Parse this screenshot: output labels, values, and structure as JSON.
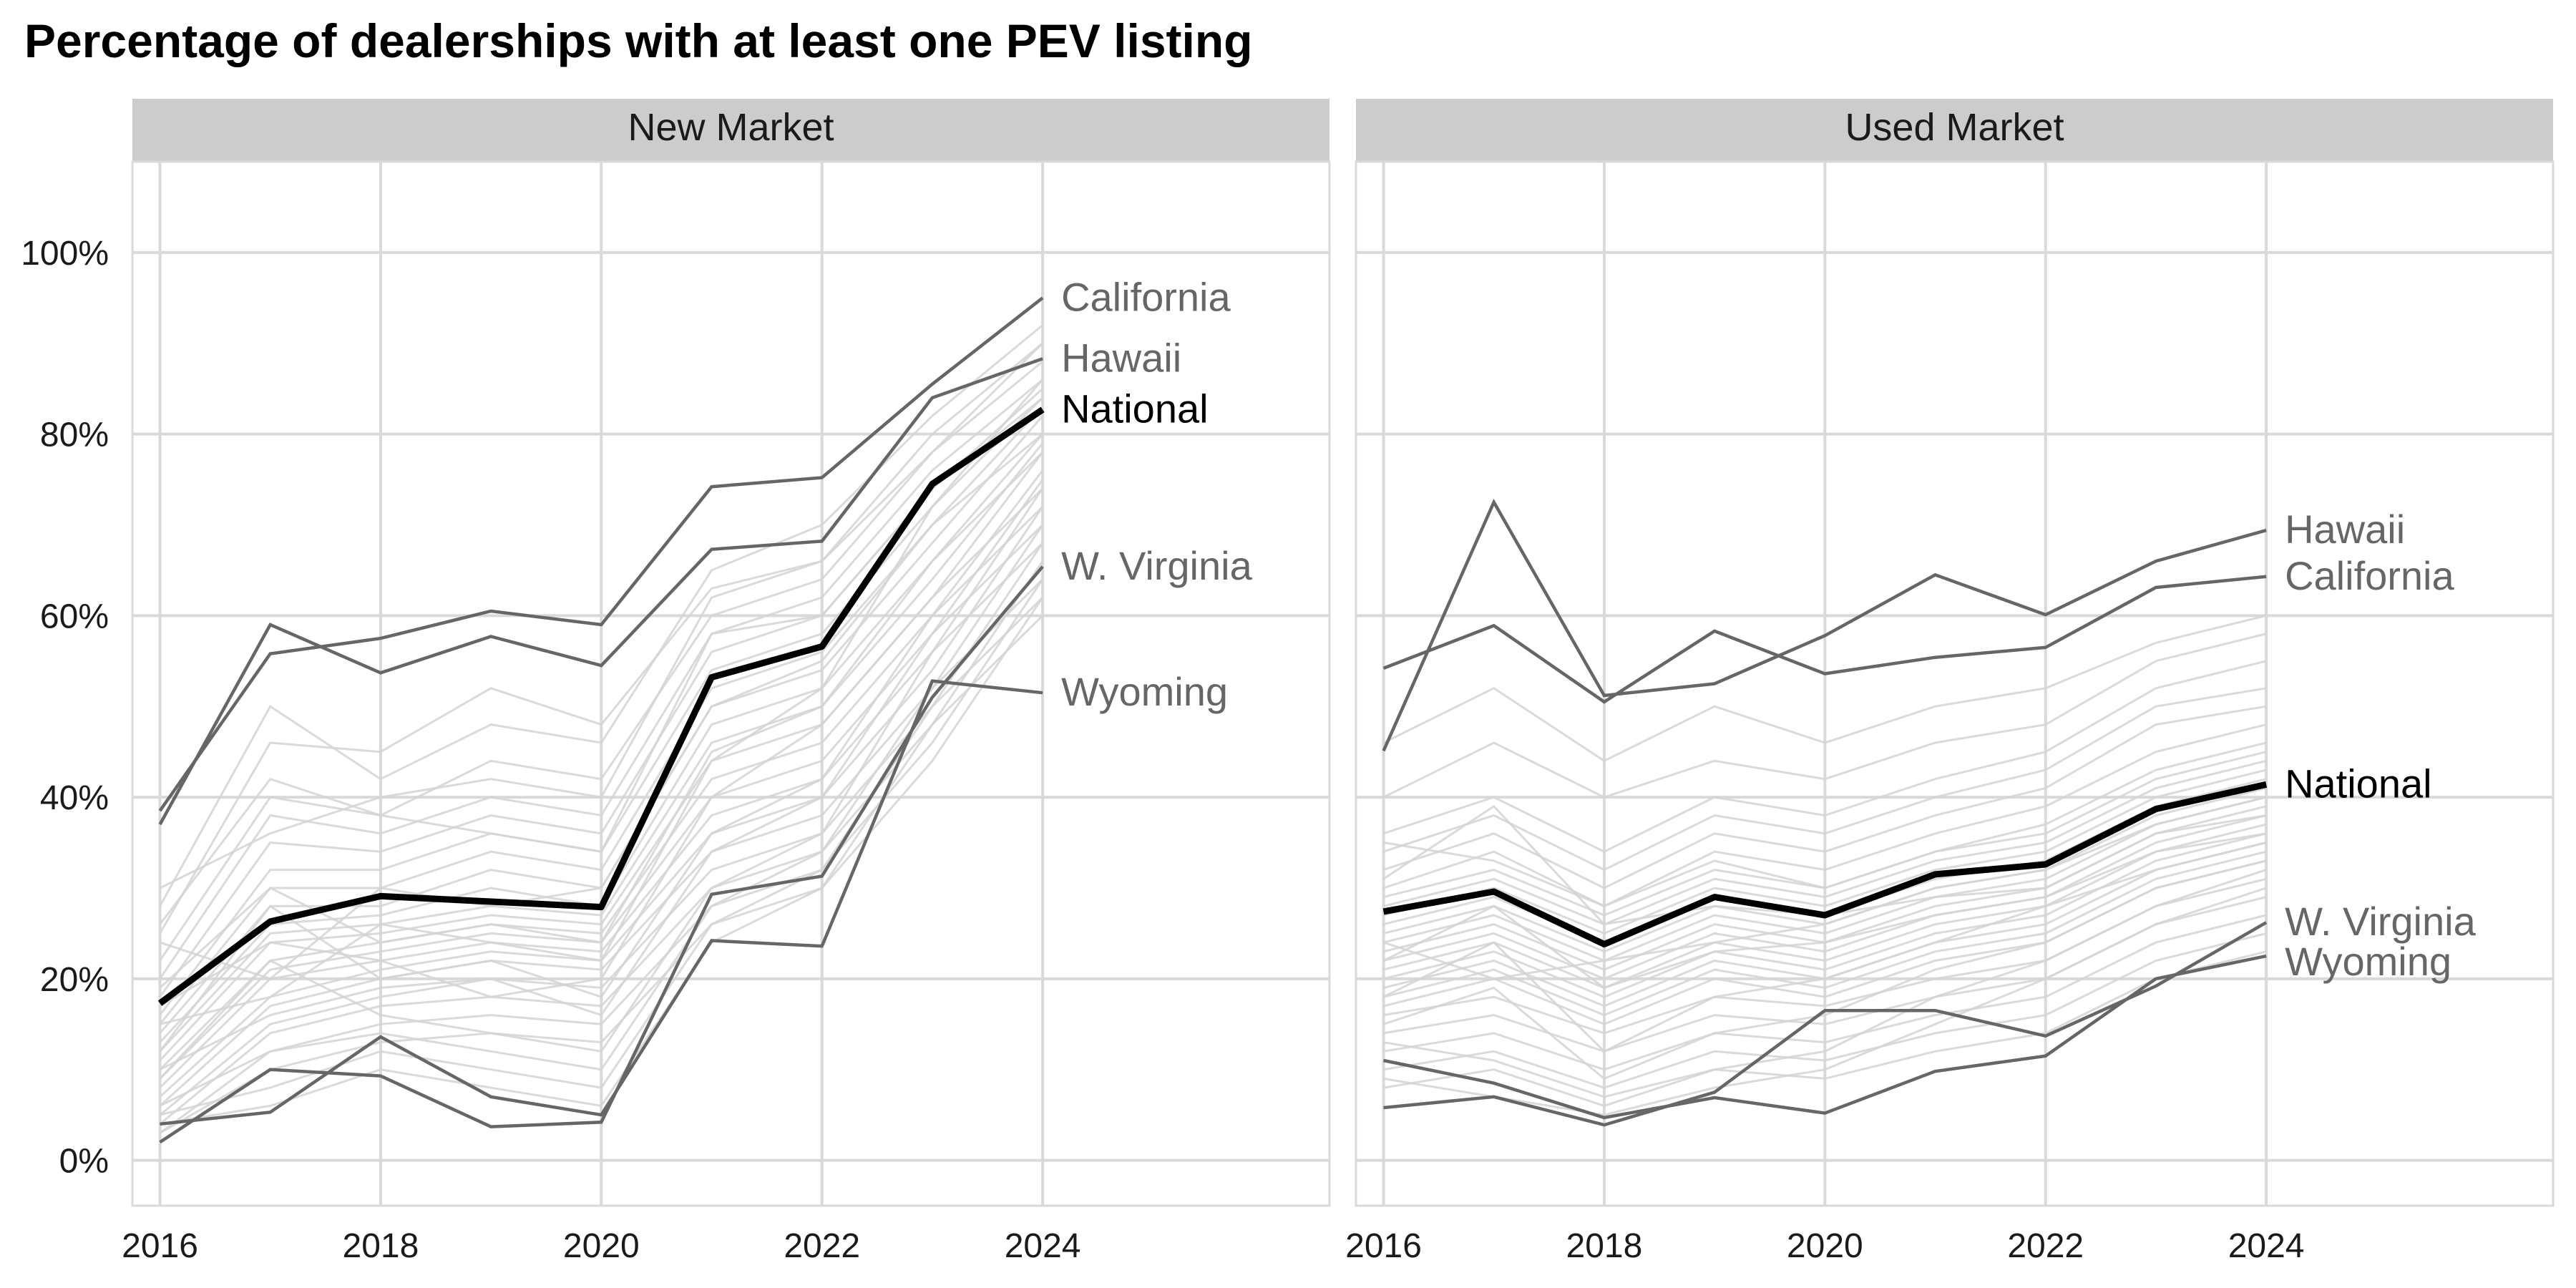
{
  "title": "Percentage of dealerships with at least one PEV listing",
  "chart_data": [
    {
      "type": "line",
      "panel": "New Market",
      "x": [
        2016,
        2017,
        2018,
        2019,
        2020,
        2021,
        2022,
        2023,
        2024
      ],
      "x_ticks": [
        2016,
        2018,
        2020,
        2022,
        2024
      ],
      "y_ticks": [
        "0%",
        "20%",
        "40%",
        "60%",
        "80%",
        "100%"
      ],
      "xlim": [
        2015.75,
        2026.6
      ],
      "ylim": [
        -5,
        110
      ],
      "grid": true,
      "series": [
        {
          "name": "National",
          "emphasis": "national",
          "values": [
            17.3,
            26.3,
            29.1,
            28.5,
            27.9,
            53.2,
            56.6,
            74.5,
            82.7
          ]
        },
        {
          "name": "California",
          "emphasis": "state",
          "values": [
            38.5,
            55.8,
            57.5,
            60.5,
            59.0,
            74.2,
            75.2,
            85.5,
            95.0
          ]
        },
        {
          "name": "Hawaii",
          "emphasis": "state",
          "values": [
            37.0,
            59.0,
            53.7,
            57.7,
            54.5,
            67.3,
            68.2,
            84.0,
            88.3
          ]
        },
        {
          "name": "W. Virginia",
          "emphasis": "state",
          "values": [
            2.0,
            10.0,
            9.3,
            3.7,
            4.2,
            29.3,
            31.3,
            51.0,
            65.4
          ]
        },
        {
          "name": "Wyoming",
          "emphasis": "state",
          "values": [
            4.0,
            5.3,
            13.6,
            7.0,
            5.0,
            24.2,
            23.6,
            52.8,
            51.5
          ]
        }
      ],
      "background_series": [
        [
          28,
          50,
          42,
          48,
          46,
          65,
          70,
          82,
          92
        ],
        [
          25,
          46,
          45,
          52,
          48,
          63,
          66,
          80,
          90
        ],
        [
          22,
          40,
          38,
          44,
          42,
          60,
          64,
          78,
          88
        ],
        [
          20,
          38,
          36,
          40,
          38,
          58,
          62,
          76,
          86
        ],
        [
          18,
          35,
          34,
          38,
          36,
          56,
          60,
          74,
          85
        ],
        [
          16,
          32,
          32,
          36,
          34,
          54,
          58,
          72,
          84
        ],
        [
          15,
          30,
          30,
          34,
          32,
          52,
          56,
          70,
          83
        ],
        [
          14,
          28,
          28,
          32,
          30,
          50,
          54,
          68,
          82
        ],
        [
          13,
          26,
          27,
          30,
          28,
          48,
          52,
          66,
          80
        ],
        [
          12,
          25,
          26,
          28,
          27,
          46,
          50,
          64,
          79
        ],
        [
          11,
          24,
          25,
          27,
          26,
          44,
          48,
          62,
          78
        ],
        [
          10,
          22,
          24,
          26,
          25,
          42,
          46,
          60,
          76
        ],
        [
          9,
          21,
          23,
          25,
          24,
          40,
          44,
          58,
          75
        ],
        [
          8,
          20,
          22,
          24,
          23,
          38,
          42,
          56,
          74
        ],
        [
          7,
          18,
          21,
          23,
          22,
          36,
          40,
          54,
          72
        ],
        [
          6,
          17,
          20,
          22,
          21,
          34,
          38,
          52,
          70
        ],
        [
          5,
          15,
          18,
          20,
          19,
          32,
          36,
          50,
          68
        ],
        [
          4,
          14,
          17,
          18,
          17,
          30,
          34,
          48,
          66
        ],
        [
          3,
          12,
          15,
          16,
          15,
          28,
          32,
          46,
          64
        ],
        [
          3,
          10,
          13,
          14,
          13,
          26,
          30,
          44,
          62
        ],
        [
          30,
          36,
          40,
          42,
          40,
          62,
          66,
          78,
          90
        ],
        [
          26,
          42,
          38,
          36,
          34,
          58,
          60,
          74,
          84
        ],
        [
          24,
          20,
          30,
          28,
          30,
          50,
          55,
          70,
          80
        ],
        [
          19,
          30,
          24,
          26,
          24,
          45,
          50,
          66,
          78
        ],
        [
          17,
          24,
          22,
          18,
          20,
          40,
          48,
          62,
          74
        ],
        [
          15,
          18,
          26,
          24,
          22,
          44,
          52,
          72,
          86
        ],
        [
          12,
          28,
          20,
          22,
          18,
          36,
          42,
          60,
          72
        ],
        [
          10,
          16,
          19,
          20,
          16,
          34,
          40,
          58,
          70
        ],
        [
          9,
          22,
          16,
          14,
          12,
          30,
          36,
          56,
          68
        ],
        [
          6,
          12,
          14,
          12,
          10,
          28,
          34,
          52,
          64
        ],
        [
          5,
          8,
          12,
          10,
          8,
          26,
          32,
          50,
          62
        ],
        [
          4,
          6,
          10,
          8,
          6,
          24,
          30,
          48,
          60
        ]
      ]
    },
    {
      "type": "line",
      "panel": "Used Market",
      "x": [
        2016,
        2017,
        2018,
        2019,
        2020,
        2021,
        2022,
        2023,
        2024
      ],
      "x_ticks": [
        2016,
        2018,
        2020,
        2022,
        2024
      ],
      "y_ticks": [
        "0%",
        "20%",
        "40%",
        "60%",
        "80%",
        "100%"
      ],
      "xlim": [
        2015.75,
        2026.6
      ],
      "ylim": [
        -5,
        110
      ],
      "grid": true,
      "series": [
        {
          "name": "National",
          "emphasis": "national",
          "values": [
            27.4,
            29.6,
            23.8,
            29.0,
            27.0,
            31.5,
            32.6,
            38.7,
            41.4
          ]
        },
        {
          "name": "Hawaii",
          "emphasis": "state",
          "values": [
            45.1,
            72.5,
            51.2,
            52.5,
            57.8,
            64.5,
            60.1,
            66.0,
            69.4
          ]
        },
        {
          "name": "California",
          "emphasis": "state",
          "values": [
            54.2,
            58.9,
            50.5,
            58.3,
            53.6,
            55.4,
            56.5,
            63.1,
            64.3
          ]
        },
        {
          "name": "W. Virginia",
          "emphasis": "state",
          "values": [
            5.8,
            7.0,
            3.9,
            7.5,
            16.5,
            16.5,
            13.7,
            19.2,
            26.2
          ]
        },
        {
          "name": "Wyoming",
          "emphasis": "state",
          "values": [
            11.0,
            8.5,
            4.7,
            6.9,
            5.2,
            9.8,
            11.5,
            20.0,
            22.5
          ]
        }
      ],
      "background_series": [
        [
          46,
          52,
          44,
          50,
          46,
          50,
          52,
          57,
          60
        ],
        [
          40,
          46,
          40,
          44,
          42,
          46,
          48,
          55,
          58
        ],
        [
          36,
          40,
          34,
          40,
          38,
          42,
          45,
          52,
          55
        ],
        [
          34,
          38,
          32,
          38,
          36,
          40,
          43,
          50,
          52
        ],
        [
          32,
          36,
          30,
          36,
          34,
          38,
          41,
          48,
          50
        ],
        [
          30,
          34,
          28,
          34,
          32,
          36,
          39,
          45,
          48
        ],
        [
          29,
          32,
          27,
          32,
          30,
          34,
          37,
          43,
          46
        ],
        [
          28,
          31,
          26,
          31,
          29,
          33,
          35,
          41,
          44
        ],
        [
          27,
          30,
          25,
          30,
          28,
          32,
          34,
          40,
          43
        ],
        [
          26,
          29,
          24,
          29,
          27,
          31,
          33,
          39,
          42
        ],
        [
          25,
          28,
          23,
          28,
          26,
          30,
          32,
          38,
          41
        ],
        [
          24,
          27,
          22,
          27,
          25,
          29,
          31,
          37,
          40
        ],
        [
          23,
          26,
          21,
          26,
          24,
          28,
          30,
          36,
          39
        ],
        [
          22,
          25,
          20,
          25,
          23,
          27,
          29,
          35,
          38
        ],
        [
          21,
          24,
          19,
          24,
          22,
          26,
          28,
          34,
          37
        ],
        [
          20,
          23,
          18,
          23,
          21,
          25,
          27,
          33,
          36
        ],
        [
          19,
          22,
          17,
          22,
          20,
          24,
          26,
          32,
          35
        ],
        [
          18,
          21,
          16,
          21,
          19,
          23,
          25,
          31,
          34
        ],
        [
          17,
          20,
          15,
          20,
          18,
          22,
          24,
          30,
          33
        ],
        [
          16,
          18,
          14,
          18,
          17,
          20,
          22,
          28,
          31
        ],
        [
          14,
          16,
          12,
          16,
          15,
          18,
          20,
          26,
          29
        ],
        [
          12,
          14,
          10,
          14,
          13,
          16,
          18,
          24,
          27
        ],
        [
          10,
          12,
          8,
          12,
          11,
          14,
          16,
          22,
          25
        ],
        [
          8,
          10,
          6,
          10,
          9,
          12,
          14,
          20,
          23
        ],
        [
          35,
          33,
          28,
          33,
          30,
          34,
          36,
          42,
          45
        ],
        [
          31,
          39,
          26,
          28,
          27,
          29,
          30,
          36,
          38
        ],
        [
          24,
          20,
          22,
          24,
          26,
          30,
          32,
          37,
          40
        ],
        [
          22,
          28,
          19,
          23,
          24,
          27,
          29,
          34,
          36
        ],
        [
          18,
          24,
          12,
          18,
          20,
          24,
          28,
          32,
          35
        ],
        [
          15,
          19,
          9,
          14,
          16,
          21,
          24,
          30,
          33
        ],
        [
          13,
          11,
          7,
          10,
          12,
          18,
          22,
          28,
          32
        ],
        [
          9,
          7,
          5,
          8,
          10,
          15,
          20,
          26,
          30
        ]
      ]
    }
  ]
}
